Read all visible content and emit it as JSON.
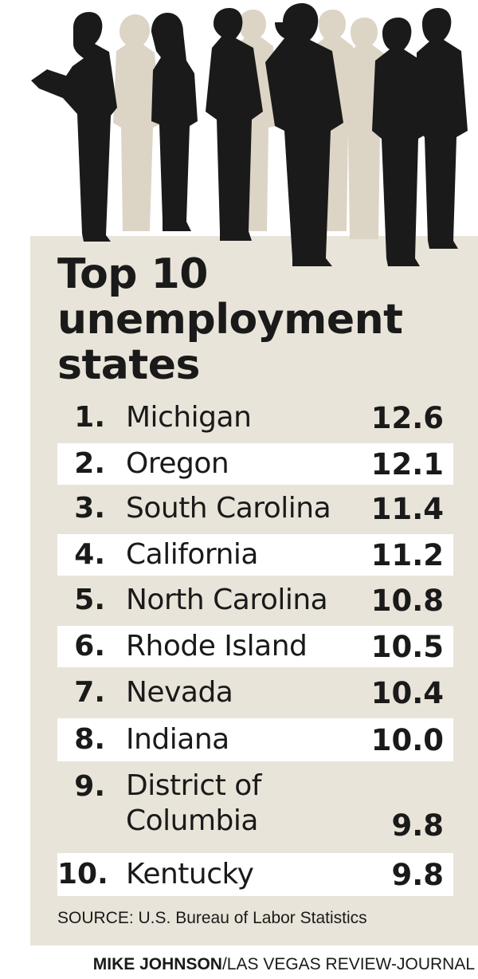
{
  "chart_data": {
    "type": "table",
    "title": [
      "Top 10",
      "unemployment",
      "states"
    ],
    "rows": [
      {
        "rank": "1.",
        "state": "Michigan",
        "value": "12.6"
      },
      {
        "rank": "2.",
        "state": "Oregon",
        "value": "12.1"
      },
      {
        "rank": "3.",
        "state": "South Carolina",
        "value": "11.4"
      },
      {
        "rank": "4.",
        "state": "California",
        "value": "11.2"
      },
      {
        "rank": "5.",
        "state": "North Carolina",
        "value": "10.8"
      },
      {
        "rank": "6.",
        "state": "Rhode Island",
        "value": "10.5"
      },
      {
        "rank": "7.",
        "state": "Nevada",
        "value": "10.4"
      },
      {
        "rank": "8.",
        "state": "Indiana",
        "value": "10.0"
      },
      {
        "rank": "9.",
        "state": "District of Columbia",
        "value": "9.8"
      },
      {
        "rank": "10.",
        "state": "Kentucky",
        "value": "9.8"
      }
    ]
  },
  "source": "SOURCE: U.S. Bureau of Labor Statistics",
  "credit": {
    "author": "MIKE JOHNSON",
    "outlet": "/LAS VEGAS REVIEW-JOURNAL"
  },
  "colors": {
    "panel": "#e9e4d9",
    "silhouette": "#1a1a1a",
    "background_silhouette": "#dcd5c6",
    "row_highlight": "#ffffff"
  }
}
